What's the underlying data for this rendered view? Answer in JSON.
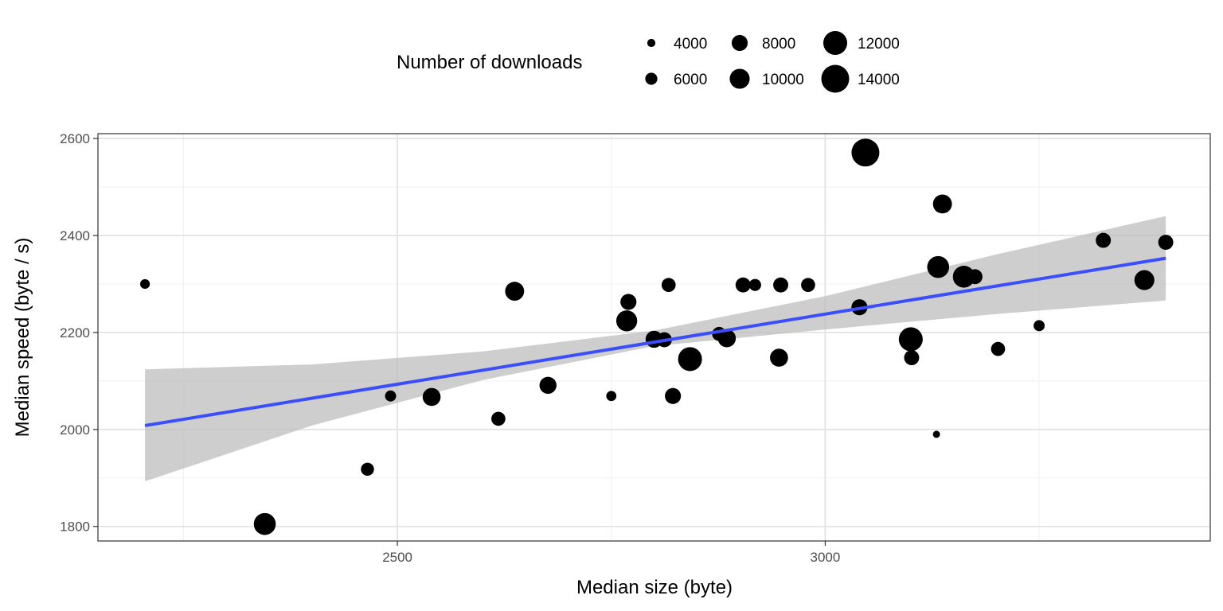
{
  "chart_data": {
    "type": "scatter",
    "xlabel": "Median size (byte)",
    "ylabel": "Median speed (byte / s)",
    "xlim": [
      2150,
      3450
    ],
    "ylim": [
      1770,
      2610
    ],
    "x_ticks": [
      2500,
      3000
    ],
    "x_tick_labels": [
      "2500",
      "3000"
    ],
    "x_minor_ticks": [
      2250,
      2750,
      3250
    ],
    "y_ticks": [
      1800,
      2000,
      2200,
      2400,
      2600
    ],
    "y_tick_labels": [
      "1800",
      "2000",
      "2200",
      "2400",
      "2600"
    ],
    "y_minor_ticks": [
      1900,
      2100,
      2300,
      2500
    ],
    "grid": true,
    "size_legend": {
      "title": "Number of downloads",
      "position": "top",
      "entries": [
        {
          "label": "4000",
          "value": 4000
        },
        {
          "label": "6000",
          "value": 6000
        },
        {
          "label": "8000",
          "value": 8000
        },
        {
          "label": "10000",
          "value": 10000
        },
        {
          "label": "12000",
          "value": 12000
        },
        {
          "label": "14000",
          "value": 14000
        }
      ]
    },
    "points": [
      {
        "x": 2205,
        "y": 2300,
        "size": 4800
      },
      {
        "x": 2345,
        "y": 1805,
        "size": 11000
      },
      {
        "x": 2465,
        "y": 1918,
        "size": 6500
      },
      {
        "x": 2492,
        "y": 2069,
        "size": 5500
      },
      {
        "x": 2540,
        "y": 2067,
        "size": 9000
      },
      {
        "x": 2618,
        "y": 2022,
        "size": 7000
      },
      {
        "x": 2637,
        "y": 2285,
        "size": 9500
      },
      {
        "x": 2676,
        "y": 2091,
        "size": 8500
      },
      {
        "x": 2750,
        "y": 2069,
        "size": 5000
      },
      {
        "x": 2768,
        "y": 2224,
        "size": 10500
      },
      {
        "x": 2770,
        "y": 2263,
        "size": 8000
      },
      {
        "x": 2800,
        "y": 2186,
        "size": 8500
      },
      {
        "x": 2812,
        "y": 2185,
        "size": 7500
      },
      {
        "x": 2817,
        "y": 2298,
        "size": 7000
      },
      {
        "x": 2822,
        "y": 2069,
        "size": 8000
      },
      {
        "x": 2842,
        "y": 2145,
        "size": 12000
      },
      {
        "x": 2876,
        "y": 2197,
        "size": 7000
      },
      {
        "x": 2885,
        "y": 2188,
        "size": 9000
      },
      {
        "x": 2904,
        "y": 2298,
        "size": 7500
      },
      {
        "x": 2918,
        "y": 2298,
        "size": 6000
      },
      {
        "x": 2948,
        "y": 2298,
        "size": 7500
      },
      {
        "x": 2946,
        "y": 2148,
        "size": 9000
      },
      {
        "x": 2980,
        "y": 2298,
        "size": 7000
      },
      {
        "x": 3040,
        "y": 2252,
        "size": 8000
      },
      {
        "x": 3047,
        "y": 2571,
        "size": 14000
      },
      {
        "x": 3100,
        "y": 2186,
        "size": 12000
      },
      {
        "x": 3101,
        "y": 2148,
        "size": 7500
      },
      {
        "x": 3130,
        "y": 1990,
        "size": 3500
      },
      {
        "x": 3132,
        "y": 2335,
        "size": 11000
      },
      {
        "x": 3137,
        "y": 2465,
        "size": 9500
      },
      {
        "x": 3162,
        "y": 2315,
        "size": 11000
      },
      {
        "x": 3175,
        "y": 2315,
        "size": 7500
      },
      {
        "x": 3202,
        "y": 2166,
        "size": 7000
      },
      {
        "x": 3250,
        "y": 2214,
        "size": 5500
      },
      {
        "x": 3325,
        "y": 2390,
        "size": 7500
      },
      {
        "x": 3373,
        "y": 2308,
        "size": 10000
      },
      {
        "x": 3398,
        "y": 2386,
        "size": 7500
      }
    ],
    "regression_line": {
      "x": [
        2205,
        3398
      ],
      "y": [
        2008,
        2353
      ],
      "color": "#3a4ffb"
    },
    "confidence_band": {
      "x": [
        2205,
        2400,
        2600,
        2800,
        3000,
        3200,
        3398
      ],
      "lower": [
        1893,
        2008,
        2102,
        2172,
        2206,
        2238,
        2266
      ],
      "upper": [
        2124,
        2134,
        2161,
        2204,
        2275,
        2361,
        2440
      ],
      "color": "#bebebe"
    },
    "point_color": "#000000"
  }
}
